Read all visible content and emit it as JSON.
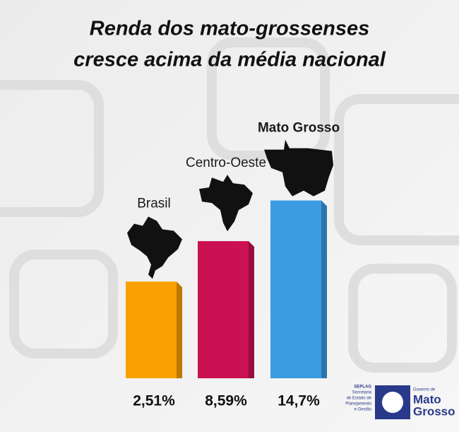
{
  "chart_data": {
    "type": "bar3d",
    "title": [
      "Renda dos mato-grossenses",
      "cresce acima da média nacional"
    ],
    "categories": [
      "Brasil",
      "Centro-Oeste",
      "Mato Grosso"
    ],
    "values": [
      2.51,
      8.59,
      14.7
    ],
    "value_labels": [
      "2,51%",
      "8,59%",
      "14,7%"
    ],
    "colors": [
      "#f9a100",
      "#cc1152",
      "#3b9ce2"
    ],
    "ylim": [
      -12,
      17
    ]
  },
  "footer": {
    "seplag": "SEPLAG",
    "secretaria": [
      "Secretaria",
      "de Estado de",
      "Planejamento",
      "e Gestão"
    ],
    "governo": "Governo de",
    "estado": [
      "Mato",
      "Grosso"
    ]
  }
}
